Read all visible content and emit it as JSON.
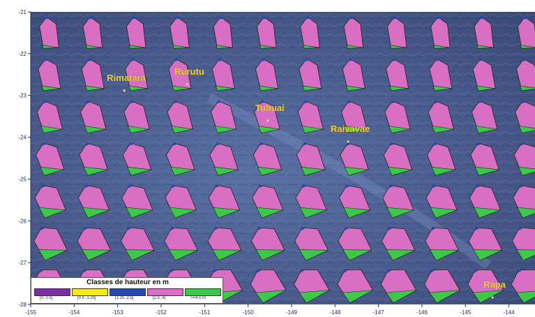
{
  "map": {
    "y_ticks": [
      "-21",
      "-22",
      "-23",
      "-24",
      "-25",
      "-26",
      "-27",
      "-28"
    ],
    "x_ticks": [
      "-155",
      "-154",
      "-153",
      "-152",
      "-151",
      "-150",
      "-149",
      "-148",
      "-147",
      "-146",
      "-145",
      "-144"
    ],
    "y_range": [
      -28,
      -21
    ],
    "x_range": [
      -155,
      -143.4
    ],
    "background_color": "#4a5e8e",
    "islands": [
      {
        "name": "Rimatara",
        "lon": -152.8,
        "lat": -22.65
      },
      {
        "name": "Rurutu",
        "lon": -151.35,
        "lat": -22.5
      },
      {
        "name": "Tubuai",
        "lon": -149.5,
        "lat": -23.37
      },
      {
        "name": "Raivavae",
        "lon": -147.65,
        "lat": -23.87
      },
      {
        "name": "Rapa",
        "lon": -144.33,
        "lat": -27.6
      }
    ]
  },
  "roses": {
    "rows": [
      {
        "lat": -21.5,
        "green_share": 0.08
      },
      {
        "lat": -22.5,
        "green_share": 0.12
      },
      {
        "lat": -23.5,
        "green_share": 0.18
      },
      {
        "lat": -24.5,
        "green_share": 0.22
      },
      {
        "lat": -25.5,
        "green_share": 0.28
      },
      {
        "lat": -26.5,
        "green_share": 0.3
      },
      {
        "lat": -27.5,
        "green_share": 0.3
      }
    ],
    "colors": {
      "pink": "#d86fc4",
      "green": "#3ec84a",
      "blue": "#2848b0",
      "purple": "#7a2ea0"
    }
  },
  "legend": {
    "title": "Classes de hauteur en m",
    "classes": [
      {
        "label": "[0, 0.5[",
        "color": "#7a2ea0"
      },
      {
        "label": "[0.5 ,1.25[",
        "color": "#f5ea1a"
      },
      {
        "label": "[1.25 ,2.5[",
        "color": "#2848b0"
      },
      {
        "label": "[2.5 ,4[",
        "color": "#d86fc4"
      },
      {
        "label": ">=4.0 m",
        "color": "#3ec84a"
      }
    ]
  }
}
